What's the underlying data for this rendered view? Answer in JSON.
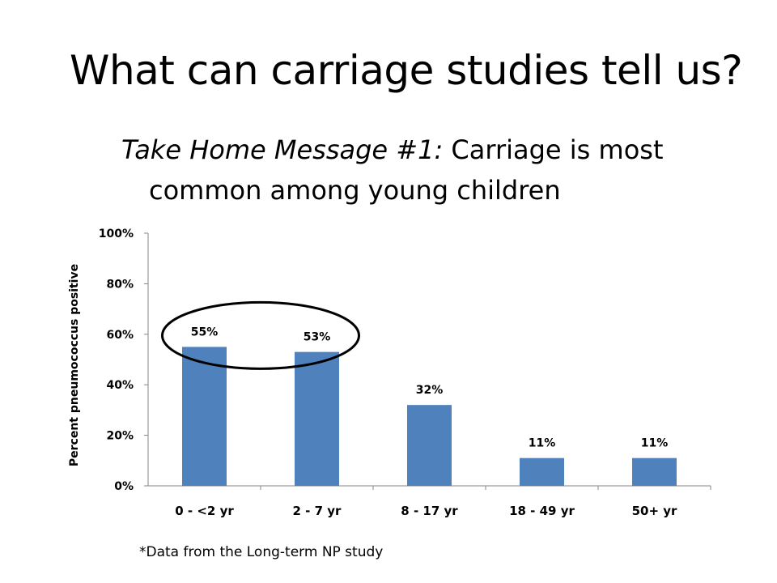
{
  "slide": {
    "title": "What can carriage studies tell us?",
    "message_prefix": "Take Home Message #1:",
    "message_line1": " Carriage is most",
    "message_line2": "common among young children",
    "footnote": "*Data from the Long-term NP study"
  },
  "colors": {
    "bar": "#4f81bd",
    "axis": "#868686",
    "highlight_ellipse": "#000000"
  },
  "chart_data": {
    "type": "bar",
    "categories": [
      "0 - <2 yr",
      "2 - 7 yr",
      "8 - 17 yr",
      "18 - 49 yr",
      "50+ yr"
    ],
    "values": [
      55,
      53,
      32,
      11,
      11
    ],
    "data_labels": [
      "55%",
      "53%",
      "32%",
      "11%",
      "11%"
    ],
    "ylabel": "Percent pneumococcus positive",
    "xlabel": "",
    "ylim": [
      0,
      100
    ],
    "y_ticks": [
      "0%",
      "20%",
      "40%",
      "60%",
      "80%",
      "100%"
    ],
    "grid": false,
    "legend": "none",
    "annotation": "ellipse highlighting the first two bars"
  }
}
